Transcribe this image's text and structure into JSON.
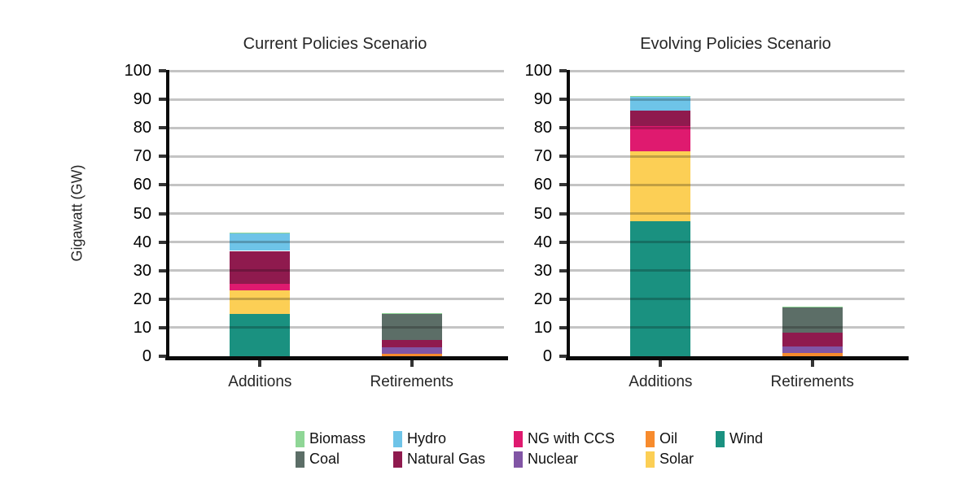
{
  "figure": {
    "ylabel": "Gigawatt (GW)",
    "background": "#ffffff",
    "gridline_color": "#c2c2c2",
    "axis_color": "#0a0a0a"
  },
  "colors": {
    "Biomass": "#8FD696",
    "Coal": "#5C6E67",
    "Hydro": "#6EC4E8",
    "Natural Gas": "#8F1A4E",
    "NG with CCS": "#DF1A6F",
    "Nuclear": "#8155A5",
    "Oil": "#F78B2D",
    "Solar": "#FCCF55",
    "Wind": "#1A9180"
  },
  "legend": {
    "position": "bottom",
    "columns": [
      [
        "Biomass",
        "Coal"
      ],
      [
        "Hydro",
        "Natural Gas"
      ],
      [
        "NG with CCS",
        "Nuclear"
      ],
      [
        "Oil",
        "Solar"
      ],
      [
        "Wind"
      ]
    ]
  },
  "chart_data": [
    {
      "type": "bar",
      "stacked": true,
      "title": "Current Policies Scenario",
      "categories": [
        "Additions",
        "Retirements"
      ],
      "xlabel": "",
      "ylabel": "Gigawatt (GW)",
      "ylim": [
        0,
        100
      ],
      "yticks": [
        0,
        10,
        20,
        30,
        40,
        50,
        60,
        70,
        80,
        90,
        100
      ],
      "grid": "horizontal",
      "series": [
        {
          "name": "Wind",
          "values": [
            14.8,
            0
          ]
        },
        {
          "name": "Solar",
          "values": [
            8.3,
            0
          ]
        },
        {
          "name": "Oil",
          "values": [
            0,
            1.0
          ]
        },
        {
          "name": "Nuclear",
          "values": [
            0,
            2.1
          ]
        },
        {
          "name": "NG with CCS",
          "values": [
            2.2,
            0
          ]
        },
        {
          "name": "Natural Gas",
          "values": [
            11.6,
            2.7
          ]
        },
        {
          "name": "Coal",
          "values": [
            0,
            9.0
          ]
        },
        {
          "name": "Hydro",
          "values": [
            6.0,
            0
          ]
        },
        {
          "name": "Biomass",
          "values": [
            0.4,
            0.3
          ]
        }
      ],
      "totals": {
        "Additions": 43.3,
        "Retirements": 15.1
      }
    },
    {
      "type": "bar",
      "stacked": true,
      "title": "Evolving Policies Scenario",
      "categories": [
        "Additions",
        "Retirements"
      ],
      "xlabel": "",
      "ylabel": "Gigawatt (GW)",
      "ylim": [
        0,
        100
      ],
      "yticks": [
        0,
        10,
        20,
        30,
        40,
        50,
        60,
        70,
        80,
        90,
        100
      ],
      "grid": "horizontal",
      "series": [
        {
          "name": "Wind",
          "values": [
            47.2,
            0
          ]
        },
        {
          "name": "Solar",
          "values": [
            24.6,
            0
          ]
        },
        {
          "name": "Oil",
          "values": [
            0,
            1.1
          ]
        },
        {
          "name": "Nuclear",
          "values": [
            0,
            2.3
          ]
        },
        {
          "name": "NG with CCS",
          "values": [
            8.8,
            0
          ]
        },
        {
          "name": "Natural Gas",
          "values": [
            5.5,
            4.8
          ]
        },
        {
          "name": "Coal",
          "values": [
            0,
            8.8
          ]
        },
        {
          "name": "Hydro",
          "values": [
            4.7,
            0
          ]
        },
        {
          "name": "Biomass",
          "values": [
            0.4,
            0.3
          ]
        }
      ],
      "totals": {
        "Additions": 91.2,
        "Retirements": 17.3
      }
    }
  ]
}
